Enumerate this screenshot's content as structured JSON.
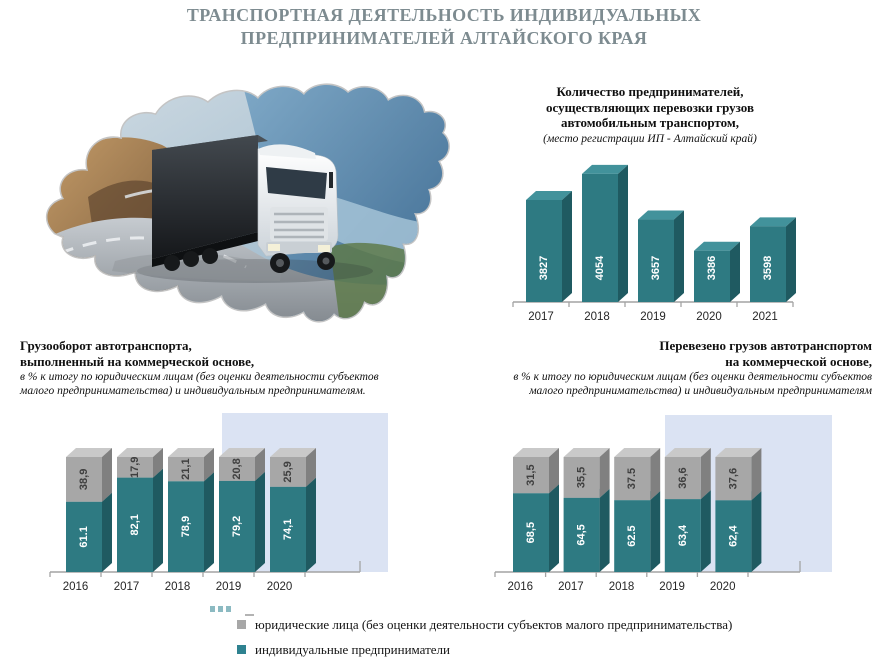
{
  "page": {
    "title_line1": "ТРАНСПОРТНАЯ ДЕЯТЕЛЬНОСТЬ ИНДИВИДУАЛЬНЫХ",
    "title_line2": "ПРЕДПРИНИМАТЕЛЕЙ АЛТАЙСКОГО КРАЯ"
  },
  "colors": {
    "title_text": "#7d8b90",
    "teal_front": "#2E7A82",
    "teal_top": "#42929B",
    "teal_side": "#1F5A61",
    "gray_front": "#A7A7A7",
    "gray_top": "#C9C9C9",
    "gray_side": "#808080",
    "highlight_bg": "#DBE3F3",
    "axis": "#A3A3A3",
    "year_text": "#262626",
    "label_on_teal": "#FFFFFF",
    "label_on_gray": "#3F3F3F"
  },
  "chart_data": [
    {
      "id": "entrepreneurs-count",
      "type": "bar",
      "title_lines": [
        "Количество предпринимателей,",
        "осуществляющих перевозки грузов",
        "автомобильным транспортом,"
      ],
      "subtitle": "(место регистрации ИП - Алтайский  край)",
      "categories": [
        "2017",
        "2018",
        "2019",
        "2020",
        "2021"
      ],
      "values": [
        3827,
        4054,
        3657,
        3386,
        3598
      ],
      "value_labels": [
        "3827",
        "4054",
        "3657",
        "3386",
        "3598"
      ],
      "ylabel": "",
      "xlabel": "",
      "grid": false,
      "axis_values_shown": false
    },
    {
      "id": "freight-turnover",
      "type": "stacked-bar",
      "title_lines": [
        "Грузооборот автотранспорта,",
        "выполненный на коммерческой основе,"
      ],
      "subtitle": "в % к итогу по юридическим лицам (без оценки деятельности субъектов малого предпринимательства) и индивидуальным предпринимателям.",
      "categories": [
        "2016",
        "2017",
        "2018",
        "2019",
        "2020"
      ],
      "series": [
        {
          "name": "индивидуальные предприниматели",
          "values": [
            61.1,
            82.1,
            78.9,
            79.2,
            74.1
          ],
          "labels": [
            "61.1",
            "82,1",
            "78,9",
            "79,2",
            "74,1"
          ]
        },
        {
          "name": "юридические лица (без оценки деятельности субъектов малого предпринимательства)",
          "values": [
            38.9,
            17.9,
            21.1,
            20.8,
            25.9
          ],
          "labels": [
            "38,9",
            "17,9",
            "21,1",
            "20,8",
            "25,9"
          ]
        }
      ],
      "ylim": [
        0,
        100
      ],
      "grid": false,
      "highlighted_years": [
        "2019",
        "2020"
      ]
    },
    {
      "id": "goods-transported",
      "type": "stacked-bar",
      "title_lines": [
        "Перевезено грузов автотранспортом",
        "на коммерческой основе,"
      ],
      "subtitle": "в % к итогу по юридическим лицам (без оценки деятельности субъектов малого предпринимательства) и индивидуальным предпринимателям",
      "categories": [
        "2016",
        "2017",
        "2018",
        "2019",
        "2020"
      ],
      "series": [
        {
          "name": "индивидуальные предприниматели",
          "values": [
            68.5,
            64.5,
            62.5,
            63.4,
            62.4
          ],
          "labels": [
            "68,5",
            "64,5",
            "62.5",
            "63,4",
            "62,4"
          ]
        },
        {
          "name": "юридические лица (без оценки деятельности субъектов малого предпринимательства)",
          "values": [
            31.5,
            35.5,
            37.5,
            36.6,
            37.6
          ],
          "labels": [
            "31,5",
            "35,5",
            "37.5",
            "36,6",
            "37,6"
          ]
        }
      ],
      "ylim": [
        0,
        100
      ],
      "grid": false,
      "highlighted_years": [
        "2019",
        "2020"
      ]
    }
  ],
  "legend": {
    "position": "bottom-left",
    "items": [
      {
        "label": "юридические лица (без оценки деятельности субъектов малого предпринимательства)",
        "color": "#A7A7A7"
      },
      {
        "label": "индивидуальные предприниматели",
        "color": "#2E8290"
      }
    ]
  }
}
